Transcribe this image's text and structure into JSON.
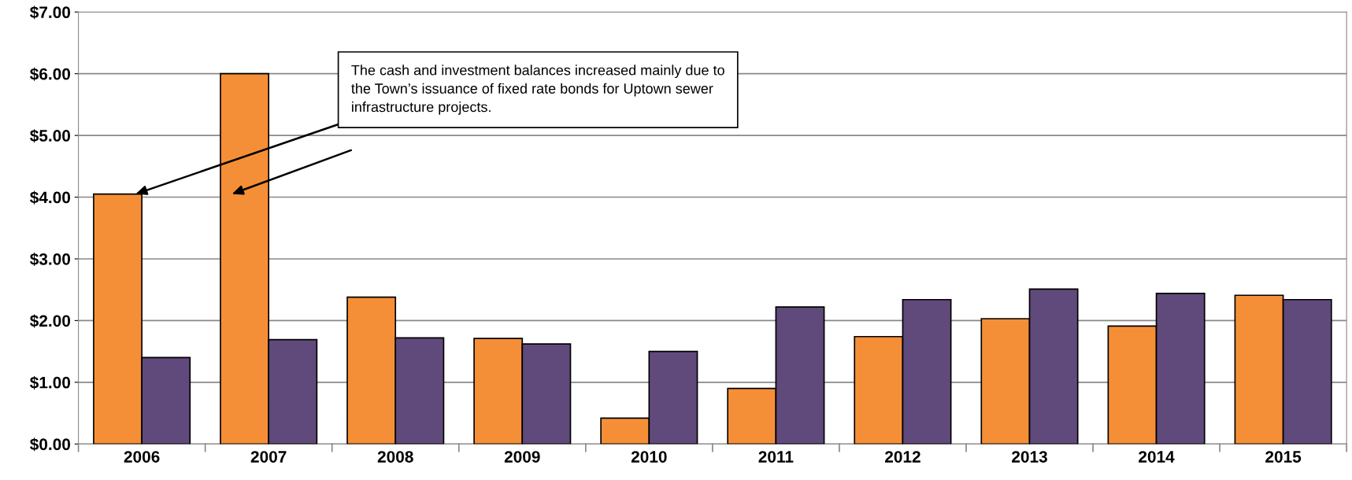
{
  "chart_data": {
    "type": "bar",
    "categories": [
      "2006",
      "2007",
      "2008",
      "2009",
      "2010",
      "2011",
      "2012",
      "2013",
      "2014",
      "2015"
    ],
    "series": [
      {
        "color": "#f58f37",
        "values": [
          4.05,
          6.0,
          2.38,
          1.71,
          0.42,
          0.9,
          1.74,
          2.03,
          1.91,
          2.41
        ]
      },
      {
        "color": "#5f4a7b",
        "values": [
          1.4,
          1.69,
          1.72,
          1.62,
          1.5,
          2.22,
          2.34,
          2.51,
          2.44,
          2.34
        ]
      }
    ],
    "ylim": [
      0,
      7
    ],
    "yticks": [
      {
        "value": 0,
        "label": "$0.00"
      },
      {
        "value": 1,
        "label": "$1.00"
      },
      {
        "value": 2,
        "label": "$2.00"
      },
      {
        "value": 3,
        "label": "$3.00"
      },
      {
        "value": 4,
        "label": "$4.00"
      },
      {
        "value": 5,
        "label": "$5.00"
      },
      {
        "value": 6,
        "label": "$6.00"
      },
      {
        "value": 7,
        "label": "$7.00"
      }
    ],
    "grid": "y",
    "annotations": [
      {
        "text": "The cash and investment balances increased mainly due to the Town’s issuance of fixed rate bonds for Uptown sewer infrastructure projects.",
        "x": "2006",
        "y": 4.05
      }
    ]
  }
}
